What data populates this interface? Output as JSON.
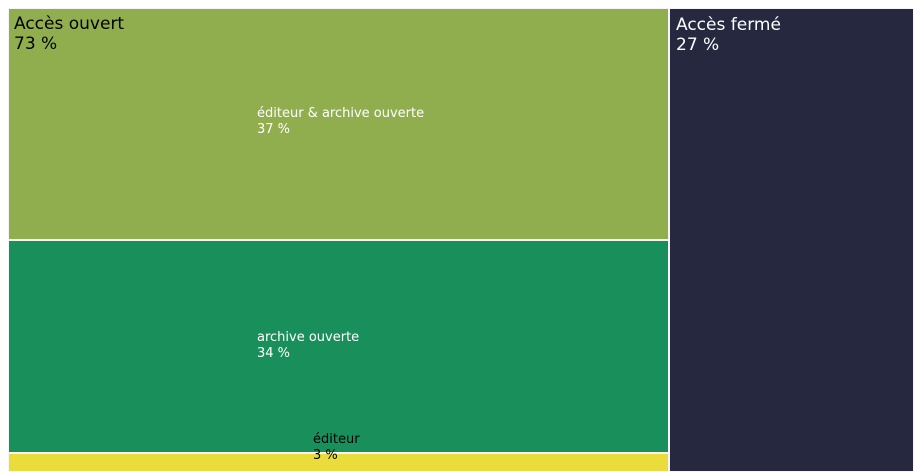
{
  "chart_data": {
    "type": "treemap",
    "groups": [
      {
        "name": "Accès ouvert",
        "label": "73 %",
        "value": 73,
        "color": "#91ae4f",
        "text_color": "#000000",
        "children": [
          {
            "name": "éditeur & archive ouverte",
            "label": "37 %",
            "value": 37,
            "color": "#91ae4f",
            "text_color": "#ffffff"
          },
          {
            "name": "archive ouverte",
            "label": "34 %",
            "value": 34,
            "color": "#19905b",
            "text_color": "#ffffff"
          },
          {
            "name": "éditeur",
            "label": "3 %",
            "value": 3,
            "color": "#eadc3b",
            "text_color": "#000000"
          }
        ]
      },
      {
        "name": "Accès fermé",
        "label": "27 %",
        "value": 27,
        "color": "#262840",
        "text_color": "#ffffff",
        "children": []
      }
    ]
  }
}
